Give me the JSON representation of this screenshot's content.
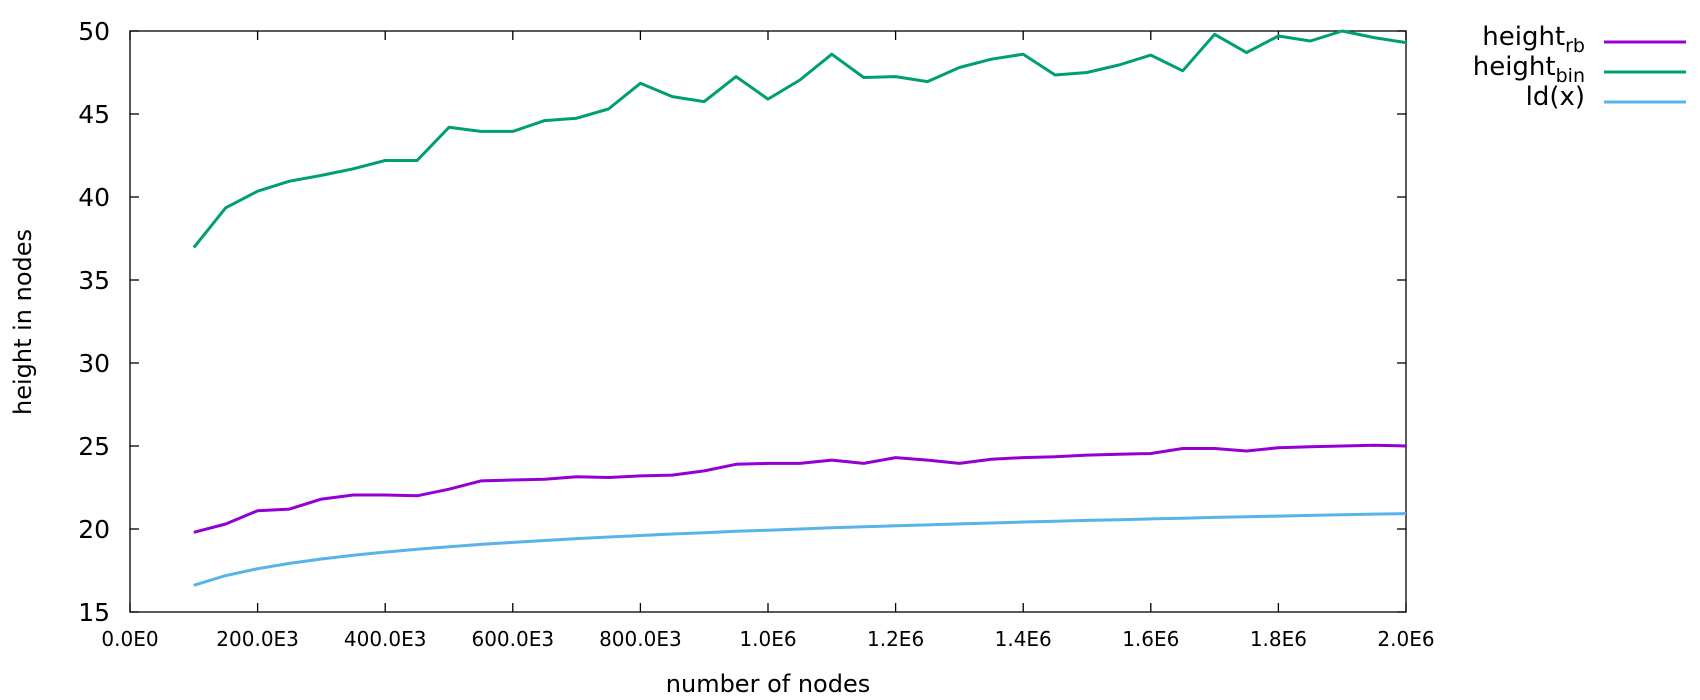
{
  "chart_data": {
    "type": "line",
    "xlabel": "number of nodes",
    "ylabel": "height in nodes",
    "xlim": [
      0,
      2000000
    ],
    "ylim": [
      15,
      50
    ],
    "x_ticks": [
      {
        "value": 0,
        "label": "0.0E0"
      },
      {
        "value": 200000,
        "label": "200.0E3"
      },
      {
        "value": 400000,
        "label": "400.0E3"
      },
      {
        "value": 600000,
        "label": "600.0E3"
      },
      {
        "value": 800000,
        "label": "800.0E3"
      },
      {
        "value": 1000000,
        "label": "1.0E6"
      },
      {
        "value": 1200000,
        "label": "1.2E6"
      },
      {
        "value": 1400000,
        "label": "1.4E6"
      },
      {
        "value": 1600000,
        "label": "1.6E6"
      },
      {
        "value": 1800000,
        "label": "1.8E6"
      },
      {
        "value": 2000000,
        "label": "2.0E6"
      }
    ],
    "y_ticks": [
      15,
      20,
      25,
      30,
      35,
      40,
      45,
      50
    ],
    "grid": false,
    "legend_position": "outside-top-right",
    "x": [
      100000,
      150000,
      200000,
      250000,
      300000,
      350000,
      400000,
      450000,
      500000,
      550000,
      600000,
      650000,
      700000,
      750000,
      800000,
      850000,
      900000,
      950000,
      1000000,
      1050000,
      1100000,
      1150000,
      1200000,
      1250000,
      1300000,
      1350000,
      1400000,
      1450000,
      1500000,
      1550000,
      1600000,
      1650000,
      1700000,
      1750000,
      1800000,
      1850000,
      1900000,
      1950000,
      2000000
    ],
    "series": [
      {
        "name": "height",
        "name_sub": "rb",
        "color": "#9400d3",
        "values": [
          19.8,
          20.3,
          21.1,
          21.2,
          21.8,
          22.05,
          22.05,
          22.0,
          22.4,
          22.9,
          22.95,
          23.0,
          23.15,
          23.1,
          23.2,
          23.25,
          23.5,
          23.9,
          23.95,
          23.95,
          24.15,
          23.95,
          24.3,
          24.15,
          23.95,
          24.2,
          24.3,
          24.35,
          24.45,
          24.5,
          24.55,
          24.85,
          24.85,
          24.7,
          24.9,
          24.95,
          25.0,
          25.05,
          25.0
        ]
      },
      {
        "name": "height",
        "name_sub": "bin",
        "color": "#009e73",
        "values": [
          36.95,
          39.35,
          40.35,
          40.95,
          41.3,
          41.7,
          42.2,
          42.2,
          44.2,
          43.95,
          43.95,
          44.6,
          44.75,
          45.3,
          46.85,
          46.05,
          45.75,
          47.25,
          45.9,
          47.05,
          48.6,
          47.2,
          47.25,
          46.95,
          47.8,
          48.3,
          48.6,
          47.35,
          47.5,
          47.95,
          48.55,
          47.6,
          49.8,
          48.7,
          49.7,
          49.4,
          50.0,
          49.6,
          49.3
        ]
      },
      {
        "name": "ld(x)",
        "name_sub": "",
        "color": "#56b4e9",
        "values": [
          16.61,
          17.19,
          17.61,
          17.93,
          18.19,
          18.42,
          18.61,
          18.78,
          18.93,
          19.07,
          19.19,
          19.31,
          19.42,
          19.52,
          19.61,
          19.7,
          19.78,
          19.86,
          19.93,
          20.0,
          20.07,
          20.13,
          20.19,
          20.25,
          20.31,
          20.36,
          20.42,
          20.47,
          20.52,
          20.56,
          20.61,
          20.65,
          20.7,
          20.74,
          20.78,
          20.82,
          20.86,
          20.9,
          20.93
        ]
      }
    ]
  }
}
